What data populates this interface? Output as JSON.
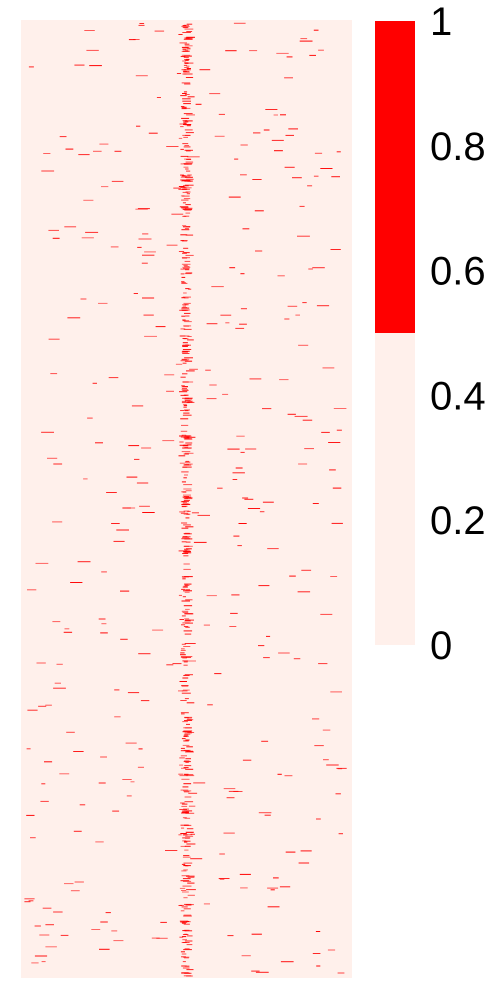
{
  "chart_data": {
    "type": "heatmap",
    "title": "",
    "xlabel": "",
    "ylabel": "",
    "value_range": [
      0,
      1
    ],
    "binary_values": [
      0,
      1
    ],
    "background_value": 0,
    "dense_center_column_fraction": 0.49,
    "colors": {
      "low": "#FFF0EB",
      "high": "#FF0000"
    },
    "colorbar": {
      "ticks": [
        {
          "value": 1,
          "label": "1"
        },
        {
          "value": 0.8,
          "label": "0.8"
        },
        {
          "value": 0.6,
          "label": "0.6"
        },
        {
          "value": 0.4,
          "label": "0.4"
        },
        {
          "value": 0.2,
          "label": "0.2"
        },
        {
          "value": 0,
          "label": "0"
        }
      ],
      "split_value": 0.5
    }
  }
}
